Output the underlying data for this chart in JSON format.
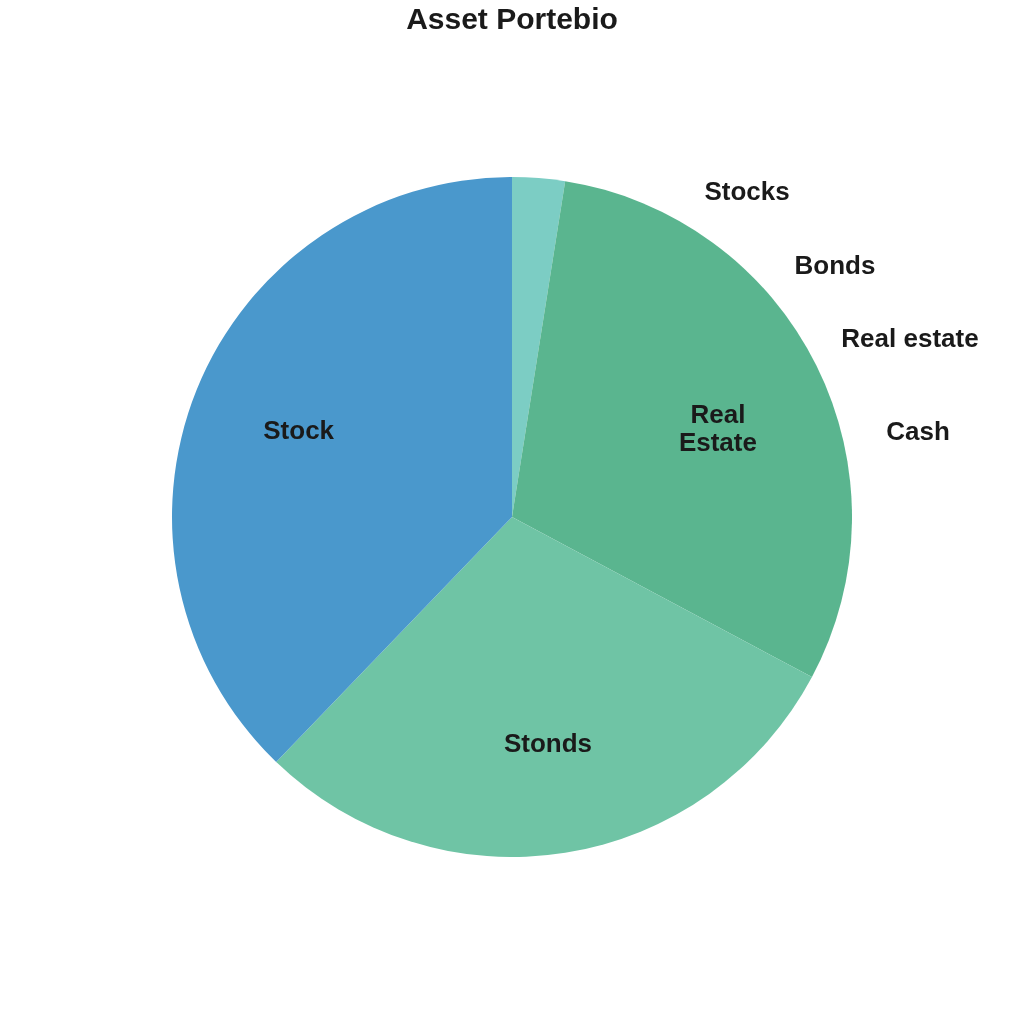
{
  "chart_data": {
    "type": "pie",
    "title": "Asset Portebio",
    "categories": [
      null,
      "Real Estate",
      "Stonds",
      "Stock"
    ],
    "values": [
      2.5,
      30.3,
      29.4,
      37.8
    ],
    "colors": [
      "#7ccdc4",
      "#5ab58f",
      "#6fc4a5",
      "#4a98cc"
    ],
    "annotations": [
      "Stocks",
      "Bonds",
      "Real estate",
      "Cash"
    ],
    "legend": false
  }
}
